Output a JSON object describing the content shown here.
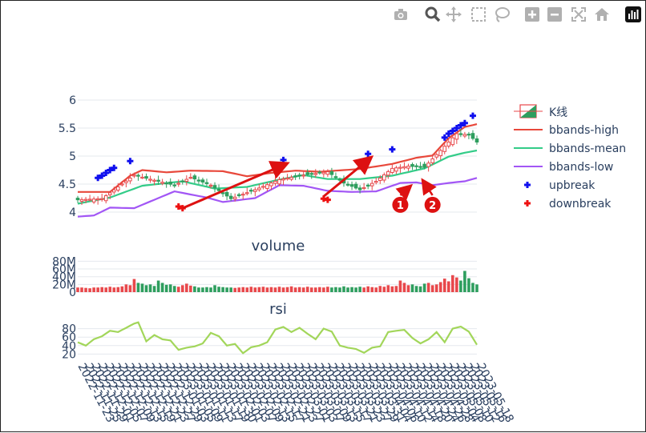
{
  "modebar": {
    "items": [
      "camera-icon",
      "zoom-icon",
      "pan-icon",
      "box-select-icon",
      "lasso-icon",
      "zoom-in-icon",
      "zoom-out-icon",
      "autoscale-icon",
      "reset-home-icon",
      "plotly-logo-icon"
    ]
  },
  "subplot_titles": {
    "volume": "volume",
    "rsi": "rsi"
  },
  "legend": {
    "kline": "K线",
    "bbands_high": "bbands-high",
    "bbands_mean": "bbands-mean",
    "bbands_low": "bbands-low",
    "upbreak": "upbreak",
    "downbreak": "downbreak"
  },
  "colors": {
    "inc": "#e8484b",
    "dec": "#2e9e5e",
    "bb_high": "#e8483b",
    "bb_mean": "#33cc88",
    "bb_low": "#a256f5",
    "up": "#1010ee",
    "down": "#ee1010",
    "rsi": "#a2d65a",
    "annot": "#dd1111"
  },
  "chart_data": [
    {
      "type": "line",
      "name": "candlestick-with-bollinger-bands",
      "ylim": [
        3.9,
        6.1
      ],
      "yticks": [
        4,
        4.5,
        5,
        5.5,
        6
      ],
      "n_points": 100,
      "close_keypoints": [
        [
          0,
          4.22
        ],
        [
          6,
          4.24
        ],
        [
          10,
          4.45
        ],
        [
          14,
          4.66
        ],
        [
          20,
          4.55
        ],
        [
          24,
          4.48
        ],
        [
          28,
          4.62
        ],
        [
          33,
          4.48
        ],
        [
          38,
          4.24
        ],
        [
          44,
          4.4
        ],
        [
          50,
          4.58
        ],
        [
          56,
          4.66
        ],
        [
          62,
          4.72
        ],
        [
          66,
          4.52
        ],
        [
          70,
          4.4
        ],
        [
          74,
          4.55
        ],
        [
          78,
          4.78
        ],
        [
          82,
          4.82
        ],
        [
          86,
          4.8
        ],
        [
          90,
          5.1
        ],
        [
          94,
          5.4
        ],
        [
          97,
          5.38
        ],
        [
          99,
          5.25
        ]
      ],
      "bbands_high_keypoints": [
        [
          0,
          4.36
        ],
        [
          8,
          4.36
        ],
        [
          13,
          4.65
        ],
        [
          16,
          4.75
        ],
        [
          22,
          4.71
        ],
        [
          28,
          4.74
        ],
        [
          36,
          4.73
        ],
        [
          42,
          4.64
        ],
        [
          48,
          4.7
        ],
        [
          54,
          4.74
        ],
        [
          60,
          4.72
        ],
        [
          70,
          4.77
        ],
        [
          78,
          4.86
        ],
        [
          84,
          4.97
        ],
        [
          88,
          5.01
        ],
        [
          92,
          5.32
        ],
        [
          96,
          5.52
        ],
        [
          99,
          5.57
        ]
      ],
      "bbands_mean_keypoints": [
        [
          0,
          4.15
        ],
        [
          8,
          4.26
        ],
        [
          16,
          4.47
        ],
        [
          26,
          4.55
        ],
        [
          34,
          4.42
        ],
        [
          42,
          4.45
        ],
        [
          50,
          4.58
        ],
        [
          56,
          4.66
        ],
        [
          62,
          4.59
        ],
        [
          70,
          4.59
        ],
        [
          78,
          4.65
        ],
        [
          86,
          4.78
        ],
        [
          92,
          4.99
        ],
        [
          96,
          5.06
        ],
        [
          99,
          5.1
        ]
      ],
      "bbands_low_keypoints": [
        [
          0,
          3.92
        ],
        [
          4,
          3.94
        ],
        [
          8,
          4.08
        ],
        [
          14,
          4.07
        ],
        [
          24,
          4.37
        ],
        [
          32,
          4.26
        ],
        [
          36,
          4.18
        ],
        [
          44,
          4.25
        ],
        [
          50,
          4.48
        ],
        [
          56,
          4.47
        ],
        [
          62,
          4.38
        ],
        [
          68,
          4.36
        ],
        [
          74,
          4.37
        ],
        [
          80,
          4.52
        ],
        [
          84,
          4.53
        ],
        [
          88,
          4.48
        ],
        [
          92,
          4.52
        ],
        [
          96,
          4.55
        ],
        [
          99,
          4.61
        ]
      ],
      "upbreak_points": [
        [
          5,
          4.61
        ],
        [
          6,
          4.65
        ],
        [
          7,
          4.7
        ],
        [
          8,
          4.75
        ],
        [
          9,
          4.79
        ],
        [
          13,
          4.91
        ],
        [
          51,
          4.93
        ],
        [
          72,
          5.04
        ],
        [
          78,
          5.12
        ],
        [
          91,
          5.33
        ],
        [
          92,
          5.4
        ],
        [
          93,
          5.45
        ],
        [
          94,
          5.5
        ],
        [
          95,
          5.55
        ],
        [
          96,
          5.59
        ],
        [
          98,
          5.72
        ]
      ],
      "downbreak_points": [
        [
          25,
          4.1
        ],
        [
          26,
          4.07
        ],
        [
          61,
          4.24
        ],
        [
          62,
          4.22
        ]
      ],
      "annotations": [
        {
          "label": "1",
          "arrow_from": [
            80,
            4.23
          ],
          "arrow_to": [
            82,
            4.43
          ]
        },
        {
          "label": "2",
          "arrow_from": [
            88,
            4.23
          ],
          "arrow_to": [
            86,
            4.52
          ]
        }
      ],
      "trend_arrows": [
        {
          "from": [
            26,
            4.07
          ],
          "to": [
            51,
            4.84
          ]
        },
        {
          "from": [
            61,
            4.28
          ],
          "to": [
            72,
            4.93
          ]
        }
      ]
    },
    {
      "type": "bar",
      "name": "volume",
      "title": "volume",
      "ylim": [
        0,
        85
      ],
      "ytick_labels": [
        "0",
        "20M",
        "40M",
        "60M",
        "80M"
      ],
      "yticks": [
        0,
        20,
        40,
        60,
        80
      ],
      "values_million": [
        12,
        12,
        11,
        10,
        12,
        12,
        13,
        12,
        14,
        12,
        13,
        15,
        20,
        18,
        34,
        24,
        22,
        18,
        20,
        16,
        30,
        24,
        19,
        20,
        16,
        14,
        18,
        22,
        17,
        15,
        12,
        12,
        13,
        12,
        18,
        14,
        13,
        12,
        12,
        11,
        12,
        13,
        12,
        14,
        12,
        13,
        14,
        12,
        13,
        12,
        14,
        12,
        13,
        15,
        12,
        13,
        12,
        14,
        12,
        12,
        13,
        12,
        14,
        12,
        13,
        12,
        15,
        12,
        13,
        12,
        14,
        12,
        15,
        13,
        12,
        16,
        14,
        18,
        15,
        16,
        30,
        24,
        18,
        20,
        16,
        15,
        22,
        24,
        18,
        20,
        26,
        35,
        28,
        44,
        38,
        30,
        55,
        36,
        24,
        20
      ]
    },
    {
      "type": "line",
      "name": "rsi",
      "title": "rsi",
      "ylim": [
        15,
        102
      ],
      "yticks": [
        20,
        40,
        60,
        80
      ],
      "keypoints": [
        [
          0,
          48
        ],
        [
          2,
          40
        ],
        [
          4,
          55
        ],
        [
          6,
          62
        ],
        [
          8,
          75
        ],
        [
          10,
          72
        ],
        [
          12,
          82
        ],
        [
          14,
          92
        ],
        [
          15,
          95
        ],
        [
          17,
          50
        ],
        [
          19,
          65
        ],
        [
          21,
          55
        ],
        [
          23,
          52
        ],
        [
          25,
          30
        ],
        [
          27,
          35
        ],
        [
          29,
          38
        ],
        [
          31,
          45
        ],
        [
          33,
          70
        ],
        [
          35,
          62
        ],
        [
          37,
          40
        ],
        [
          39,
          44
        ],
        [
          41,
          22
        ],
        [
          43,
          36
        ],
        [
          45,
          40
        ],
        [
          47,
          48
        ],
        [
          49,
          78
        ],
        [
          51,
          84
        ],
        [
          53,
          72
        ],
        [
          55,
          82
        ],
        [
          57,
          68
        ],
        [
          59,
          55
        ],
        [
          61,
          80
        ],
        [
          63,
          73
        ],
        [
          65,
          40
        ],
        [
          67,
          35
        ],
        [
          69,
          32
        ],
        [
          71,
          23
        ],
        [
          73,
          35
        ],
        [
          75,
          38
        ],
        [
          77,
          72
        ],
        [
          79,
          75
        ],
        [
          81,
          77
        ],
        [
          83,
          58
        ],
        [
          85,
          45
        ],
        [
          87,
          55
        ],
        [
          89,
          72
        ],
        [
          91,
          48
        ],
        [
          93,
          80
        ],
        [
          95,
          85
        ],
        [
          97,
          73
        ],
        [
          99,
          42
        ]
      ]
    }
  ],
  "x_tick_labels": [
    "2022-11-23",
    "2022-11-25",
    "2022-11-29",
    "2022-12-01",
    "2022-12-05",
    "2022-12-07",
    "2022-12-09",
    "2022-12-13",
    "2022-12-15",
    "2022-12-19",
    "2022-12-21",
    "2022-12-23",
    "2022-12-27",
    "2022-12-29",
    "2023-01-03",
    "2023-01-05",
    "2023-01-09",
    "2023-01-11",
    "2023-01-13",
    "2023-01-17",
    "2023-01-19",
    "2023-01-30",
    "2023-02-01",
    "2023-02-03",
    "2023-02-07",
    "2023-02-09",
    "2023-02-13",
    "2023-02-15",
    "2023-02-17",
    "2023-02-21",
    "2023-02-23",
    "2023-02-27",
    "2023-03-01",
    "2023-03-03",
    "2023-03-07",
    "2023-03-09",
    "2023-03-13",
    "2023-03-15",
    "2023-03-17",
    "2023-03-21",
    "2023-03-23",
    "2023-03-27",
    "2023-03-29",
    "2023-03-31",
    "2023-04-04",
    "2023-04-06",
    "2023-04-10",
    "2023-04-12",
    "2023-04-14",
    "2023-04-18",
    "2023-04-20",
    "2023-04-24",
    "2023-04-26",
    "2023-04-28",
    "2023-05-04",
    "2023-05-08",
    "2023-05-10",
    "2023-05-12",
    "2023-05-16",
    "2023-05-18"
  ]
}
